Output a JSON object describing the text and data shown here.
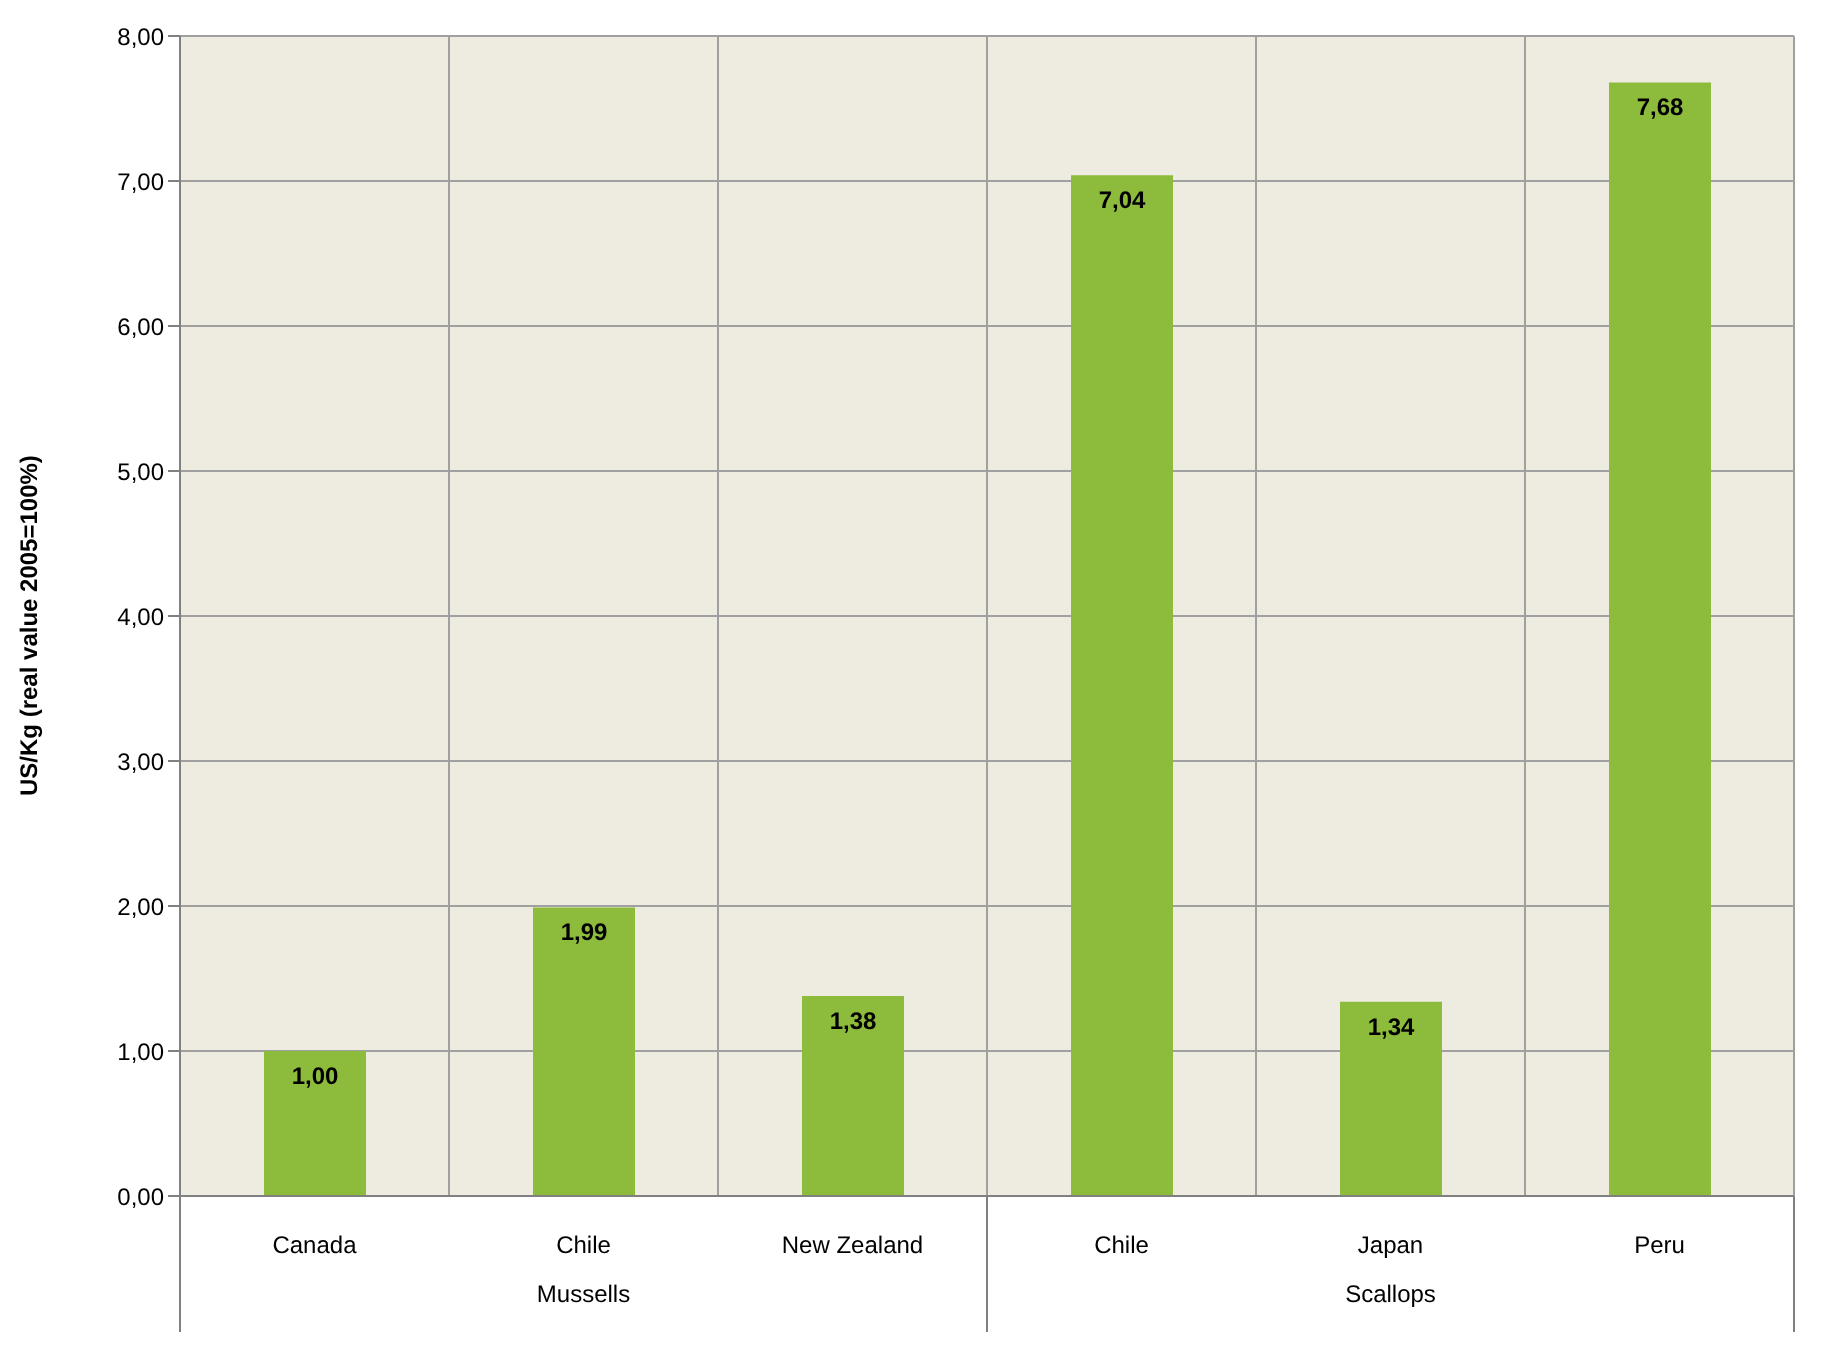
{
  "chart_data": {
    "type": "bar",
    "ylabel": "US/Kg (real value 2005=100%)",
    "categories": [
      "Canada",
      "Chile",
      "New Zealand",
      "Chile",
      "Japan",
      "Peru"
    ],
    "values": [
      1.0,
      1.99,
      1.38,
      7.04,
      1.34,
      7.68
    ],
    "value_labels": [
      "1,00",
      "1,99",
      "1,38",
      "7,04",
      "1,34",
      "7,68"
    ],
    "color": "#8dbb3c",
    "ylim": [
      0,
      8
    ],
    "yticks": [
      {
        "value": 0,
        "label": "0,00"
      },
      {
        "value": 1,
        "label": "1,00"
      },
      {
        "value": 2,
        "label": "2,00"
      },
      {
        "value": 3,
        "label": "3,00"
      },
      {
        "value": 4,
        "label": "4,00"
      },
      {
        "value": 5,
        "label": "5,00"
      },
      {
        "value": 6,
        "label": "6,00"
      },
      {
        "value": 7,
        "label": "7,00"
      },
      {
        "value": 8,
        "label": "8,00"
      }
    ],
    "grid": true,
    "annotations": [
      "Mussells",
      "Scallops"
    ]
  }
}
